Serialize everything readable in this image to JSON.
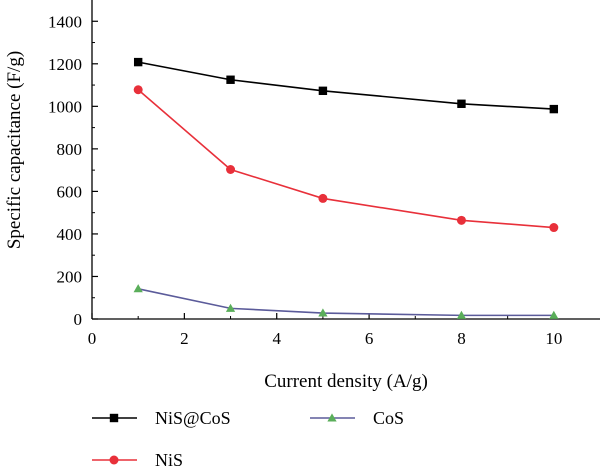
{
  "chart_data": {
    "type": "line",
    "xlabel": "Current density (A/g)",
    "ylabel": "Specific capacitance (F/g)",
    "xlim": [
      0,
      11
    ],
    "ylim": [
      0,
      1500
    ],
    "xticks": [
      0,
      2,
      4,
      6,
      8,
      10
    ],
    "yticks": [
      0,
      200,
      400,
      600,
      800,
      1000,
      1200,
      1400
    ],
    "grid": false,
    "legend_position": "bottom",
    "series": [
      {
        "name": "NiS@CoS",
        "color": "#000000",
        "marker": "square",
        "x": [
          1,
          3,
          5,
          8,
          10
        ],
        "y": [
          1208,
          1125,
          1073,
          1012,
          987
        ]
      },
      {
        "name": "CoS",
        "color": "#5b5b9a",
        "marker_color": "#5aae5a",
        "marker": "triangle",
        "x": [
          1,
          3,
          5,
          8,
          10
        ],
        "y": [
          142,
          50,
          28,
          17,
          17
        ]
      },
      {
        "name": "NiS",
        "color": "#e8303a",
        "marker": "circle",
        "x": [
          1,
          3,
          5,
          8,
          10
        ],
        "y": [
          1078,
          703,
          567,
          464,
          430
        ]
      }
    ]
  }
}
